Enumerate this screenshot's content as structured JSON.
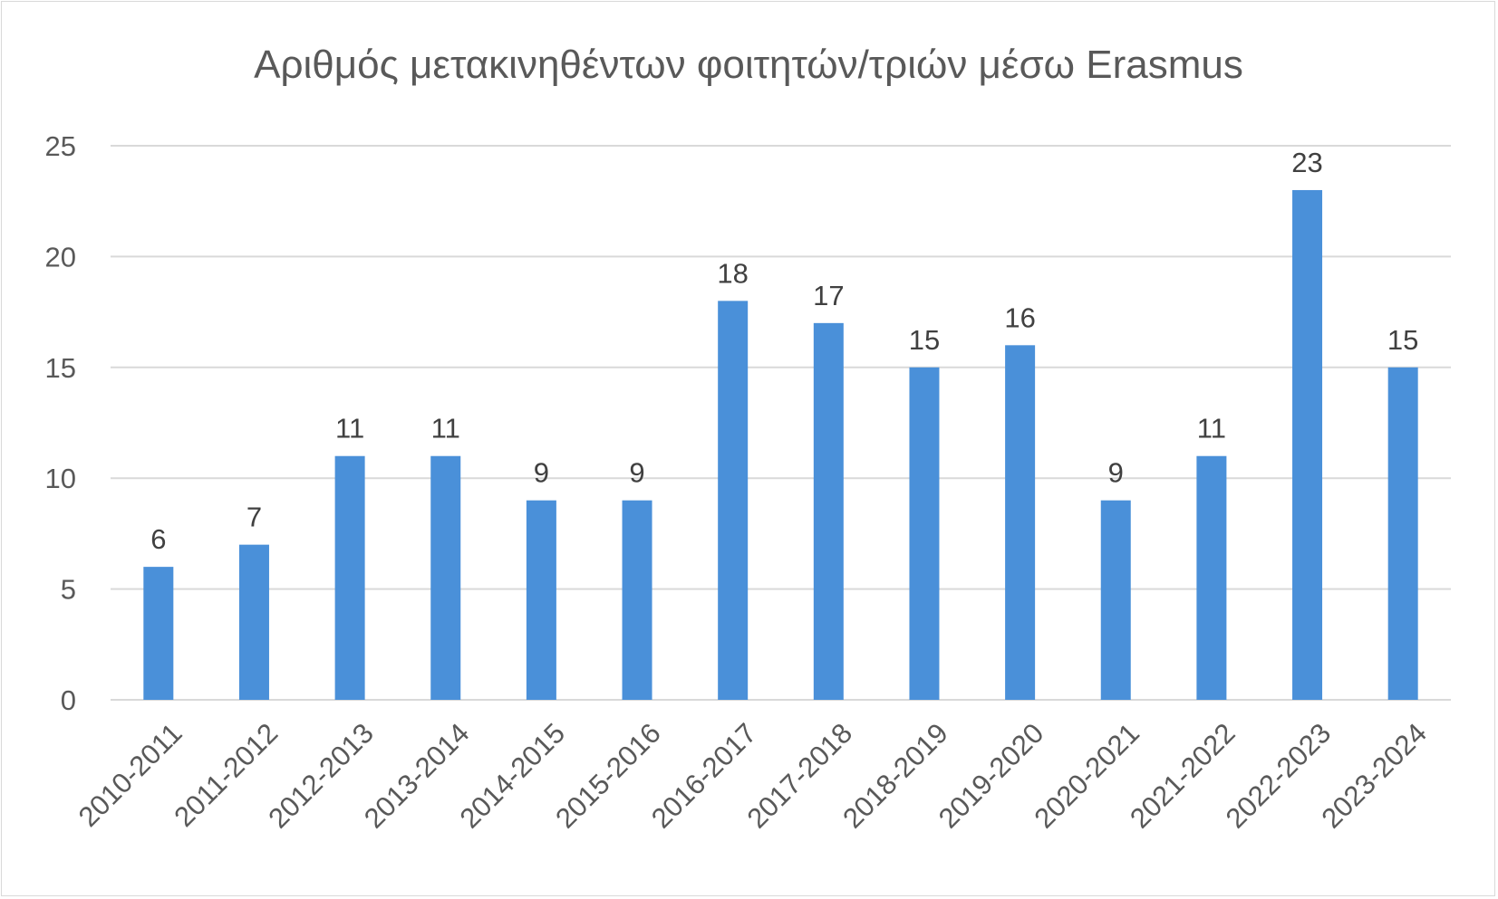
{
  "chart_data": {
    "type": "bar",
    "title": "Αριθμός μετακινηθέντων φοιτητών/τριών μέσω Erasmus",
    "xlabel": "",
    "ylabel": "",
    "categories": [
      "2010-2011",
      "2011-2012",
      "2012-2013",
      "2013-2014",
      "2014-2015",
      "2015-2016",
      "2016-2017",
      "2017-2018",
      "2018-2019",
      "2019-2020",
      "2020-2021",
      "2021-2022",
      "2022-2023",
      "2023-2024"
    ],
    "values": [
      6,
      7,
      11,
      11,
      9,
      9,
      18,
      17,
      15,
      16,
      9,
      11,
      23,
      15
    ],
    "data_labels": [
      "6",
      "7",
      "11",
      "11",
      "9",
      "9",
      "18",
      "17",
      "15",
      "16",
      "9",
      "11",
      "23",
      "15"
    ],
    "ylim": [
      0,
      25
    ],
    "yticks": [
      0,
      5,
      10,
      15,
      20,
      25
    ],
    "ytick_labels": [
      "0",
      "5",
      "10",
      "15",
      "20",
      "25"
    ],
    "grid": true,
    "legend": "none",
    "bar_color": "#4a90d9",
    "grid_color": "#d9d9d9",
    "text_color": "#595959"
  }
}
